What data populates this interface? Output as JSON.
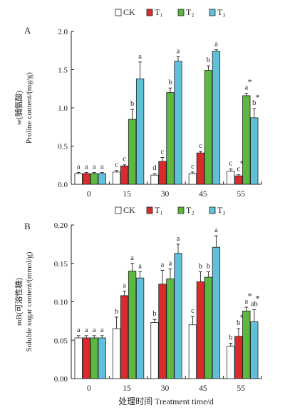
{
  "figure_xlabel": "处理时间 Treatment time/d",
  "legend": [
    {
      "label": "CK",
      "color": "#ffffff"
    },
    {
      "label": "T₁",
      "color": "#d92b2b"
    },
    {
      "label": "T₂",
      "color": "#5db83e"
    },
    {
      "label": "T₃",
      "color": "#5fc0d8"
    }
  ],
  "chart_data": [
    {
      "type": "bar",
      "panel_label": "A",
      "ylabel_line1": "w(脯氨酸)",
      "ylabel_line2": "Proline content/(mg/g)",
      "categories": [
        "0",
        "15",
        "30",
        "45",
        "55"
      ],
      "ylim": [
        0,
        2.0
      ],
      "yticks": [
        0.0,
        0.5,
        1.0,
        1.5,
        2.0
      ],
      "ytick_labels": [
        "0.0",
        "0.5",
        "1.0",
        "1.5",
        "2.0"
      ],
      "series": [
        {
          "name": "CK",
          "color": "#ffffff",
          "values": [
            0.14,
            0.16,
            0.12,
            0.14,
            0.17
          ],
          "errors": [
            0.015,
            0.02,
            0.02,
            0.02,
            0.03
          ],
          "sig": [
            "a",
            "c",
            "d",
            "c",
            "c"
          ],
          "star": [
            false,
            false,
            false,
            false,
            false
          ]
        },
        {
          "name": "T₁",
          "color": "#d92b2b",
          "values": [
            0.14,
            0.24,
            0.3,
            0.41,
            0.11
          ],
          "errors": [
            0.015,
            0.015,
            0.05,
            0.02,
            0.015
          ],
          "sig": [
            "a",
            "c",
            "c",
            "c",
            "c"
          ],
          "star": [
            false,
            false,
            false,
            false,
            true
          ]
        },
        {
          "name": "T₂",
          "color": "#5db83e",
          "values": [
            0.14,
            0.85,
            1.2,
            1.49,
            1.16
          ],
          "errors": [
            0.015,
            0.13,
            0.06,
            0.06,
            0.03
          ],
          "sig": [
            "a",
            "b",
            "b",
            "b",
            "a"
          ],
          "star": [
            false,
            false,
            false,
            false,
            true
          ]
        },
        {
          "name": "T₃",
          "color": "#5fc0d8",
          "values": [
            0.14,
            1.38,
            1.61,
            1.74,
            0.87
          ],
          "errors": [
            0.015,
            0.22,
            0.06,
            0.02,
            0.12
          ],
          "sig": [
            "a",
            "a",
            "a",
            "a",
            "b"
          ],
          "star": [
            false,
            false,
            false,
            false,
            true
          ]
        }
      ]
    },
    {
      "type": "bar",
      "panel_label": "B",
      "ylabel_line1": "mB(可溶性糖)",
      "ylabel_line2": "Soluble sugar content/(mmol/g)",
      "categories": [
        "0",
        "15",
        "30",
        "45",
        "55"
      ],
      "ylim": [
        0,
        0.2
      ],
      "yticks": [
        0.0,
        0.05,
        0.1,
        0.15,
        0.2
      ],
      "ytick_labels": [
        "0.00",
        "0.05",
        "0.10",
        "0.15",
        "0.20"
      ],
      "series": [
        {
          "name": "CK",
          "color": "#ffffff",
          "values": [
            0.053,
            0.065,
            0.073,
            0.07,
            0.042
          ],
          "errors": [
            0.003,
            0.015,
            0.004,
            0.011,
            0.004
          ],
          "sig": [
            "a",
            "b",
            "b",
            "c",
            "b"
          ],
          "star": [
            false,
            false,
            false,
            false,
            false
          ]
        },
        {
          "name": "T₁",
          "color": "#d92b2b",
          "values": [
            0.053,
            0.108,
            0.123,
            0.126,
            0.055
          ],
          "errors": [
            0.003,
            0.006,
            0.018,
            0.013,
            0.01
          ],
          "sig": [
            "a",
            "a",
            "a",
            "b",
            "b"
          ],
          "star": [
            false,
            false,
            false,
            false,
            true
          ]
        },
        {
          "name": "T₂",
          "color": "#5db83e",
          "values": [
            0.053,
            0.14,
            0.13,
            0.132,
            0.088
          ],
          "errors": [
            0.003,
            0.01,
            0.013,
            0.007,
            0.005
          ],
          "sig": [
            "a",
            "a",
            "a",
            "b",
            "a"
          ],
          "star": [
            false,
            false,
            false,
            false,
            true
          ]
        },
        {
          "name": "T₃",
          "color": "#5fc0d8",
          "values": [
            0.053,
            0.131,
            0.163,
            0.171,
            0.074
          ],
          "errors": [
            0.003,
            0.008,
            0.012,
            0.015,
            0.016
          ],
          "sig": [
            "a",
            "a",
            "a",
            "a",
            "ab"
          ],
          "star": [
            false,
            false,
            false,
            false,
            true
          ]
        }
      ]
    }
  ]
}
